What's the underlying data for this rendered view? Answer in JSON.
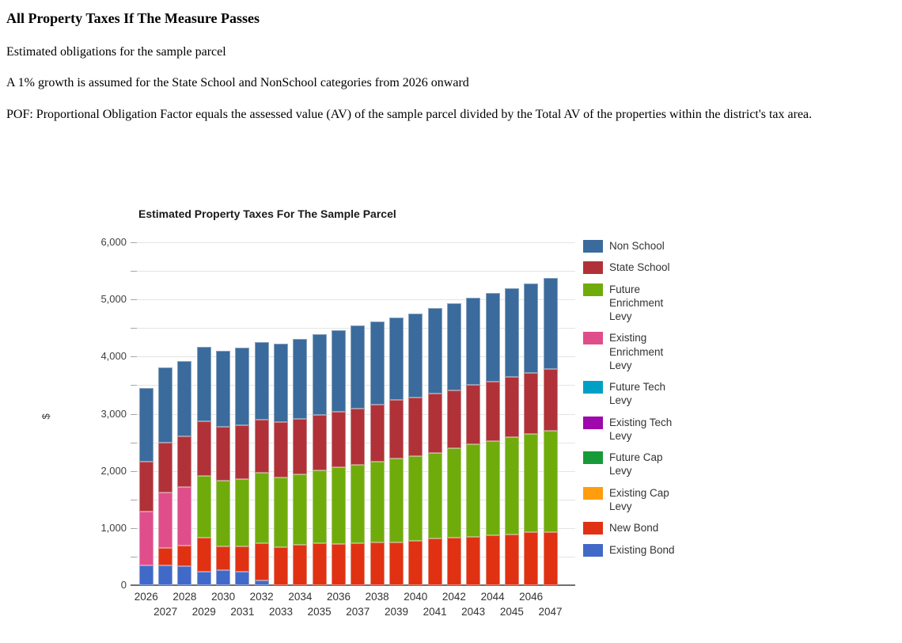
{
  "header": {
    "title": "All Property Taxes If The Measure Passes",
    "line1": "Estimated obligations for the sample parcel",
    "line2": "A 1% growth is assumed for the State School and NonSchool categories from 2026 onward",
    "line3": "POF: Proportional Obligation Factor equals the assessed value (AV) of the sample parcel divided by the Total AV of the properties within the district's tax area."
  },
  "chart_data": {
    "type": "bar",
    "stacked": true,
    "title": "Estimated Property Taxes For The Sample Parcel",
    "xlabel": "",
    "ylabel": "$",
    "ylim": [
      0,
      6000
    ],
    "ytick_interval": 1000,
    "minor_grid_interval": 500,
    "ytick_labels": [
      "0",
      "1,000",
      "2,000",
      "3,000",
      "4,000",
      "5,000",
      "6,000"
    ],
    "grid": true,
    "legend_position": "right",
    "categories": [
      2026,
      2027,
      2028,
      2029,
      2030,
      2031,
      2032,
      2033,
      2034,
      2035,
      2036,
      2037,
      2038,
      2039,
      2040,
      2041,
      2042,
      2043,
      2044,
      2045,
      2046,
      2047
    ],
    "series_bottom_to_top": [
      {
        "name": "Existing Bond",
        "color": "#4169C8",
        "values": [
          340,
          340,
          330,
          240,
          260,
          235,
          90,
          0,
          0,
          0,
          0,
          0,
          0,
          0,
          0,
          0,
          0,
          0,
          0,
          0,
          0,
          0
        ]
      },
      {
        "name": "New Bond",
        "color": "#E03213",
        "values": [
          0,
          310,
          370,
          585,
          425,
          450,
          645,
          660,
          700,
          730,
          720,
          735,
          745,
          755,
          775,
          815,
          835,
          850,
          875,
          890,
          925,
          935
        ]
      },
      {
        "name": "Existing Cap Levy",
        "color": "#FF9D0F",
        "values": [
          0,
          0,
          0,
          0,
          0,
          0,
          0,
          0,
          0,
          0,
          0,
          0,
          0,
          0,
          0,
          0,
          0,
          0,
          0,
          0,
          0,
          0
        ]
      },
      {
        "name": "Future Cap Levy",
        "color": "#169B38",
        "values": [
          0,
          0,
          0,
          0,
          0,
          0,
          0,
          0,
          0,
          0,
          0,
          0,
          0,
          0,
          0,
          0,
          0,
          0,
          0,
          0,
          0,
          0
        ]
      },
      {
        "name": "Existing Tech Levy",
        "color": "#9E08AC",
        "values": [
          0,
          0,
          0,
          0,
          0,
          0,
          0,
          0,
          0,
          0,
          0,
          0,
          0,
          0,
          0,
          0,
          0,
          0,
          0,
          0,
          0,
          0
        ]
      },
      {
        "name": "Future Tech Levy",
        "color": "#00A0C6",
        "values": [
          0,
          0,
          0,
          0,
          0,
          0,
          0,
          0,
          0,
          0,
          0,
          0,
          0,
          0,
          0,
          0,
          0,
          0,
          0,
          0,
          0,
          0
        ]
      },
      {
        "name": "Existing Enrichment Levy",
        "color": "#DF4E8B",
        "values": [
          955,
          965,
          1015,
          0,
          0,
          0,
          0,
          0,
          0,
          0,
          0,
          0,
          0,
          0,
          0,
          0,
          0,
          0,
          0,
          0,
          0,
          0
        ]
      },
      {
        "name": "Future Enrichment Levy",
        "color": "#6FAC0B",
        "values": [
          0,
          0,
          0,
          1090,
          1145,
          1170,
          1230,
          1230,
          1240,
          1275,
          1340,
          1370,
          1415,
          1460,
          1490,
          1505,
          1560,
          1615,
          1645,
          1700,
          1725,
          1770
        ]
      },
      {
        "name": "State School",
        "color": "#B03238",
        "values": [
          865,
          885,
          895,
          950,
          945,
          940,
          930,
          965,
          975,
          970,
          980,
          990,
          995,
          1030,
          1025,
          1035,
          1020,
          1040,
          1045,
          1060,
          1065,
          1080
        ]
      },
      {
        "name": "Non School",
        "color": "#3A6B9C",
        "values": [
          1285,
          1305,
          1315,
          1310,
          1330,
          1365,
          1365,
          1365,
          1395,
          1415,
          1425,
          1445,
          1460,
          1440,
          1470,
          1500,
          1515,
          1530,
          1550,
          1540,
          1560,
          1585
        ]
      }
    ],
    "legend_order_top_to_bottom": [
      "Non School",
      "State School",
      "Future Enrichment Levy",
      "Existing Enrichment Levy",
      "Future Tech Levy",
      "Existing Tech Levy",
      "Future Cap Levy",
      "Existing Cap Levy",
      "New Bond",
      "Existing Bond"
    ]
  }
}
